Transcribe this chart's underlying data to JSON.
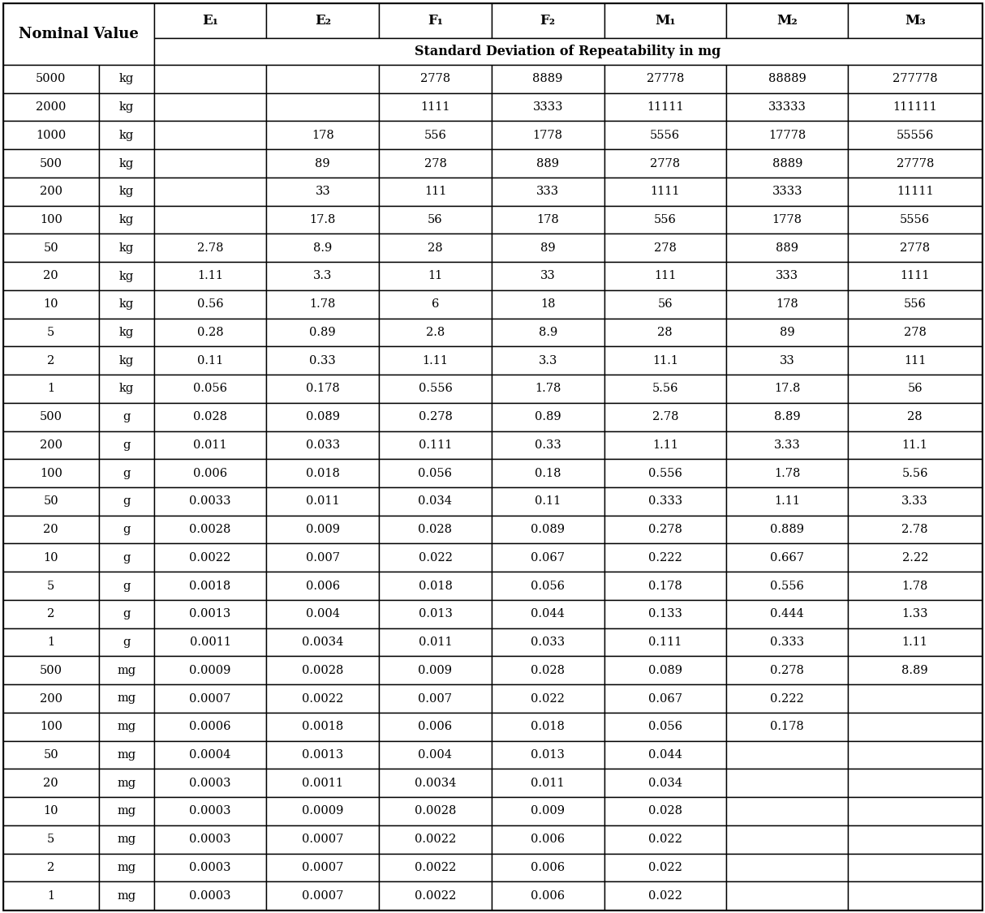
{
  "col_headers_row1": [
    "E₁",
    "E₂",
    "F₁",
    "F₂",
    "M₁",
    "M₂",
    "M₃"
  ],
  "col_headers_row2": "Standard Deviation of Repeatability in mg",
  "nominal_col1": [
    "5000",
    "2000",
    "1000",
    "500",
    "200",
    "100",
    "50",
    "20",
    "10",
    "5",
    "2",
    "1",
    "500",
    "200",
    "100",
    "50",
    "20",
    "10",
    "5",
    "2",
    "1",
    "500",
    "200",
    "100",
    "50",
    "20",
    "10",
    "5",
    "2",
    "1"
  ],
  "nominal_col2": [
    "kg",
    "kg",
    "kg",
    "kg",
    "kg",
    "kg",
    "kg",
    "kg",
    "kg",
    "kg",
    "kg",
    "kg",
    "g",
    "g",
    "g",
    "g",
    "g",
    "g",
    "g",
    "g",
    "g",
    "mg",
    "mg",
    "mg",
    "mg",
    "mg",
    "mg",
    "mg",
    "mg",
    "mg"
  ],
  "data": [
    [
      "",
      "",
      "2778",
      "8889",
      "27778",
      "88889",
      "277778"
    ],
    [
      "",
      "",
      "1111",
      "3333",
      "11111",
      "33333",
      "111111"
    ],
    [
      "",
      "178",
      "556",
      "1778",
      "5556",
      "17778",
      "55556"
    ],
    [
      "",
      "89",
      "278",
      "889",
      "2778",
      "8889",
      "27778"
    ],
    [
      "",
      "33",
      "111",
      "333",
      "1111",
      "3333",
      "11111"
    ],
    [
      "",
      "17.8",
      "56",
      "178",
      "556",
      "1778",
      "5556"
    ],
    [
      "2.78",
      "8.9",
      "28",
      "89",
      "278",
      "889",
      "2778"
    ],
    [
      "1.11",
      "3.3",
      "11",
      "33",
      "111",
      "333",
      "1111"
    ],
    [
      "0.56",
      "1.78",
      "6",
      "18",
      "56",
      "178",
      "556"
    ],
    [
      "0.28",
      "0.89",
      "2.8",
      "8.9",
      "28",
      "89",
      "278"
    ],
    [
      "0.11",
      "0.33",
      "1.11",
      "3.3",
      "11.1",
      "33",
      "111"
    ],
    [
      "0.056",
      "0.178",
      "0.556",
      "1.78",
      "5.56",
      "17.8",
      "56"
    ],
    [
      "0.028",
      "0.089",
      "0.278",
      "0.89",
      "2.78",
      "8.89",
      "28"
    ],
    [
      "0.011",
      "0.033",
      "0.111",
      "0.33",
      "1.11",
      "3.33",
      "11.1"
    ],
    [
      "0.006",
      "0.018",
      "0.056",
      "0.18",
      "0.556",
      "1.78",
      "5.56"
    ],
    [
      "0.0033",
      "0.011",
      "0.034",
      "0.11",
      "0.333",
      "1.11",
      "3.33"
    ],
    [
      "0.0028",
      "0.009",
      "0.028",
      "0.089",
      "0.278",
      "0.889",
      "2.78"
    ],
    [
      "0.0022",
      "0.007",
      "0.022",
      "0.067",
      "0.222",
      "0.667",
      "2.22"
    ],
    [
      "0.0018",
      "0.006",
      "0.018",
      "0.056",
      "0.178",
      "0.556",
      "1.78"
    ],
    [
      "0.0013",
      "0.004",
      "0.013",
      "0.044",
      "0.133",
      "0.444",
      "1.33"
    ],
    [
      "0.0011",
      "0.0034",
      "0.011",
      "0.033",
      "0.111",
      "0.333",
      "1.11"
    ],
    [
      "0.0009",
      "0.0028",
      "0.009",
      "0.028",
      "0.089",
      "0.278",
      "8.89"
    ],
    [
      "0.0007",
      "0.0022",
      "0.007",
      "0.022",
      "0.067",
      "0.222",
      ""
    ],
    [
      "0.0006",
      "0.0018",
      "0.006",
      "0.018",
      "0.056",
      "0.178",
      ""
    ],
    [
      "0.0004",
      "0.0013",
      "0.004",
      "0.013",
      "0.044",
      "",
      ""
    ],
    [
      "0.0003",
      "0.0011",
      "0.0034",
      "0.011",
      "0.034",
      "",
      ""
    ],
    [
      "0.0003",
      "0.0009",
      "0.0028",
      "0.009",
      "0.028",
      "",
      ""
    ],
    [
      "0.0003",
      "0.0007",
      "0.0022",
      "0.006",
      "0.022",
      "",
      ""
    ],
    [
      "0.0003",
      "0.0007",
      "0.0022",
      "0.006",
      "0.022",
      "",
      ""
    ],
    [
      "0.0003",
      "0.0007",
      "0.0022",
      "0.006",
      "0.022",
      "",
      ""
    ]
  ],
  "bg_color": "#ffffff",
  "text_color": "#000000",
  "data_font_size": 10.5,
  "header_font_size": 12,
  "nominal_header_font_size": 13,
  "std_dev_font_size": 11.5,
  "col_header_font_size": 12,
  "lw_outer": 2.0,
  "lw_inner": 1.0
}
